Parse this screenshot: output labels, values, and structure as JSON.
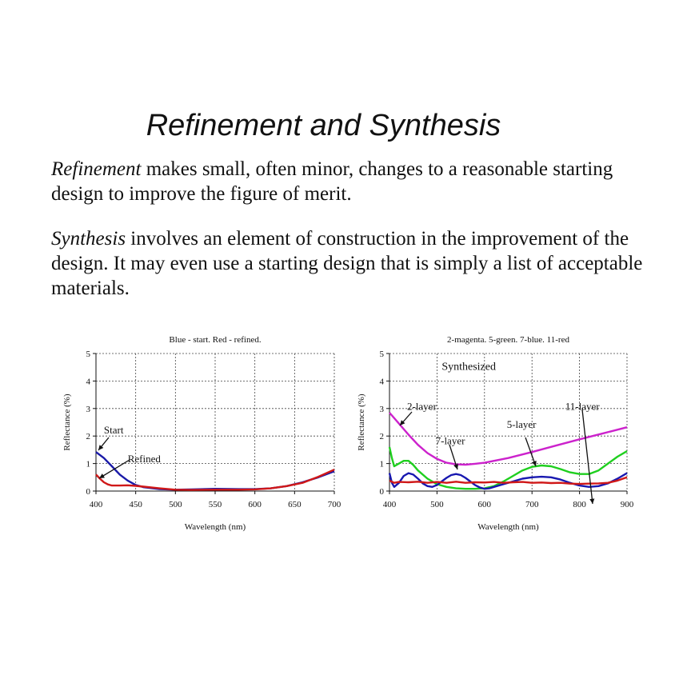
{
  "slide": {
    "title": "Refinement and Synthesis",
    "para1_term": "Refinement",
    "para1_rest": " makes small, often minor, changes to a reasonable starting design to improve the figure of merit.",
    "para2_term": "Synthesis",
    "para2_rest": " involves an element of construction in the improvement of the design. It may even use a starting design that is simply a list of acceptable materials."
  },
  "chart_data": [
    {
      "type": "line",
      "title": "Blue - start. Red - refined.",
      "xlabel": "Wavelength (nm)",
      "ylabel": "Reflectance (%)",
      "xlim": [
        400,
        700
      ],
      "ylim": [
        0,
        5
      ],
      "xticks": [
        400,
        450,
        500,
        550,
        600,
        650,
        700
      ],
      "yticks": [
        0,
        1,
        2,
        3,
        4,
        5
      ],
      "grid": true,
      "series": [
        {
          "color": "#1a1aa8",
          "x": [
            400,
            410,
            420,
            430,
            440,
            450,
            460,
            480,
            500,
            520,
            550,
            580,
            600,
            620,
            640,
            660,
            680,
            700
          ],
          "y": [
            1.42,
            1.2,
            0.9,
            0.6,
            0.38,
            0.22,
            0.14,
            0.07,
            0.05,
            0.06,
            0.08,
            0.07,
            0.07,
            0.1,
            0.18,
            0.32,
            0.5,
            0.72
          ]
        },
        {
          "color": "#d01818",
          "x": [
            400,
            405,
            410,
            415,
            420,
            430,
            440,
            450,
            460,
            480,
            500,
            520,
            550,
            580,
            600,
            620,
            640,
            660,
            680,
            700
          ],
          "y": [
            0.6,
            0.45,
            0.32,
            0.24,
            0.2,
            0.2,
            0.21,
            0.19,
            0.16,
            0.1,
            0.05,
            0.04,
            0.05,
            0.05,
            0.06,
            0.1,
            0.18,
            0.3,
            0.52,
            0.78
          ]
        }
      ],
      "annotations": [
        {
          "text": "Start",
          "x": 410,
          "y": 2.1
        },
        {
          "text": "Refined",
          "x": 440,
          "y": 1.05
        }
      ]
    },
    {
      "type": "line",
      "title": "2-magenta. 5-green. 7-blue. 11-red",
      "xlabel": "Wavelength (nm)",
      "ylabel": "Reflectance (%)",
      "xlim": [
        400,
        900
      ],
      "ylim": [
        0,
        5
      ],
      "xticks": [
        400,
        500,
        600,
        700,
        800,
        900
      ],
      "yticks": [
        0,
        1,
        2,
        3,
        4,
        5
      ],
      "grid": true,
      "series": [
        {
          "color": "#cc22cc",
          "x": [
            400,
            420,
            440,
            460,
            480,
            500,
            520,
            540,
            560,
            580,
            600,
            650,
            700,
            750,
            800,
            850,
            900
          ],
          "y": [
            2.85,
            2.45,
            2.05,
            1.68,
            1.38,
            1.17,
            1.03,
            0.97,
            0.96,
            0.99,
            1.03,
            1.2,
            1.42,
            1.65,
            1.88,
            2.1,
            2.32
          ]
        },
        {
          "color": "#1fcf1f",
          "x": [
            400,
            405,
            410,
            420,
            430,
            440,
            450,
            460,
            480,
            500,
            520,
            540,
            560,
            580,
            600,
            620,
            640,
            660,
            680,
            700,
            720,
            740,
            760,
            780,
            800,
            820,
            840,
            860,
            880,
            900
          ],
          "y": [
            1.6,
            1.2,
            0.9,
            1.0,
            1.1,
            1.1,
            0.95,
            0.75,
            0.45,
            0.25,
            0.15,
            0.1,
            0.08,
            0.08,
            0.1,
            0.18,
            0.35,
            0.55,
            0.75,
            0.88,
            0.93,
            0.9,
            0.8,
            0.68,
            0.62,
            0.62,
            0.75,
            1.0,
            1.25,
            1.45
          ]
        },
        {
          "color": "#1818b0",
          "x": [
            400,
            405,
            410,
            420,
            430,
            440,
            450,
            460,
            470,
            480,
            490,
            500,
            510,
            520,
            530,
            540,
            550,
            560,
            570,
            580,
            590,
            600,
            610,
            620,
            640,
            660,
            680,
            700,
            720,
            740,
            760,
            780,
            800,
            820,
            840,
            860,
            880,
            900
          ],
          "y": [
            0.65,
            0.3,
            0.15,
            0.3,
            0.55,
            0.65,
            0.6,
            0.45,
            0.28,
            0.18,
            0.15,
            0.22,
            0.35,
            0.48,
            0.58,
            0.62,
            0.58,
            0.48,
            0.35,
            0.22,
            0.13,
            0.08,
            0.1,
            0.15,
            0.25,
            0.35,
            0.45,
            0.5,
            0.52,
            0.5,
            0.42,
            0.3,
            0.2,
            0.15,
            0.18,
            0.28,
            0.45,
            0.65
          ]
        },
        {
          "color": "#d01818",
          "x": [
            400,
            410,
            420,
            440,
            460,
            480,
            500,
            520,
            540,
            560,
            580,
            600,
            620,
            640,
            660,
            680,
            700,
            720,
            740,
            760,
            780,
            800,
            820,
            840,
            860,
            880,
            900
          ],
          "y": [
            0.38,
            0.3,
            0.33,
            0.32,
            0.34,
            0.3,
            0.33,
            0.3,
            0.34,
            0.3,
            0.32,
            0.31,
            0.33,
            0.3,
            0.32,
            0.33,
            0.3,
            0.31,
            0.29,
            0.3,
            0.27,
            0.26,
            0.27,
            0.28,
            0.3,
            0.38,
            0.5
          ]
        }
      ],
      "annotations": [
        {
          "text": "Synthesized",
          "x": 510,
          "y": 4.4
        },
        {
          "text": "2-layer",
          "x": 437,
          "y": 2.95
        },
        {
          "text": "11-layer",
          "x": 770,
          "y": 2.95
        },
        {
          "text": "5-layer",
          "x": 647,
          "y": 2.3
        },
        {
          "text": "7-layer",
          "x": 497,
          "y": 1.7
        }
      ]
    }
  ]
}
